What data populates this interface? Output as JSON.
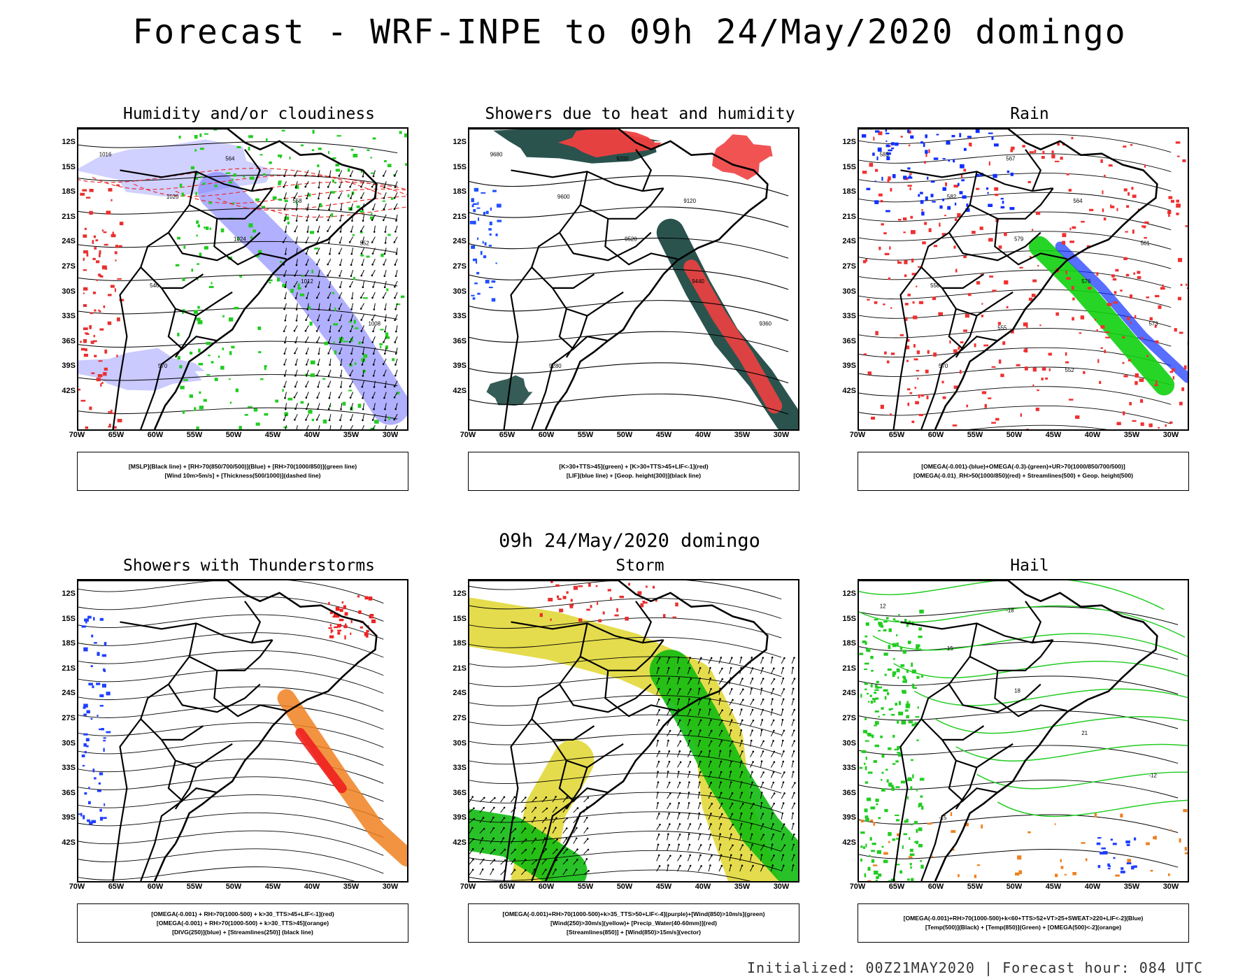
{
  "title": "Forecast - WRF-INPE to 09h 24/May/2020 domingo",
  "mid_title": "09h 24/May/2020 domingo",
  "footer": "Initialized: 00Z21MAY2020 | Forecast hour: 084 UTC",
  "lat_ticks": [
    "12S",
    "15S",
    "18S",
    "21S",
    "24S",
    "27S",
    "30S",
    "33S",
    "36S",
    "39S",
    "42S"
  ],
  "lon_ticks": [
    "70W",
    "65W",
    "60W",
    "55W",
    "50W",
    "45W",
    "40W",
    "35W",
    "30W"
  ],
  "panels": [
    {
      "title": "Humidity and/or cloudiness",
      "legend": [
        "[MSLP](Black line) + [RH>70(850/700/500)](Blue) + [RH>70(1000/850)](green line)",
        "[Wind 10m>5m/s] + [Thickness(500/1000)](dashed line)"
      ],
      "labels": [
        "1016",
        "1020",
        "1024",
        "1012",
        "1008",
        "570",
        "564",
        "558",
        "552",
        "546"
      ],
      "colors": {
        "primary": "#7b7bff",
        "secondary": "#22cc22",
        "accent": "#e83030"
      }
    },
    {
      "title": "Showers due to heat and humidity",
      "legend": [
        "[K>30+TTS>45](green) + [K>30+TTS>45+LIF<-1](red)",
        "[LIF](blue line) + [Geop. height(300)](black line)"
      ],
      "labels": [
        "9680",
        "9600",
        "9520",
        "9440",
        "9360",
        "9280",
        "9200",
        "9120"
      ],
      "colors": {
        "primary": "#1f4a45",
        "secondary": "#f04040",
        "accent": "#2050ff"
      }
    },
    {
      "title": "Rain",
      "legend": [
        "[OMEGA(-0.001)-(blue)+OMEGA(-0.3)-(green)+UR>70(1000/850/700/500)]",
        "[OMEGA(-0.01)_RH>50(1000/850)(red) + Streamlines(500) + Geop. height(500)"
      ],
      "labels": [
        "585",
        "582",
        "579",
        "576",
        "573",
        "570",
        "567",
        "564",
        "561",
        "558",
        "555",
        "552"
      ],
      "colors": {
        "primary": "#f03030",
        "secondary": "#10d010",
        "accent": "#1030ff"
      }
    },
    {
      "title": "Showers with Thunderstorms",
      "legend": [
        "[OMEGA(-0.001) + RH>70(1000-500) + k>30_TTS>45+LIF<-1](red)",
        "[OMEGA(-0.001) + RH>70(1000-500) + k>30_TTS>45](orange)",
        "[DIVG(250)](blue) + [Streamlines(250)] (black line)"
      ],
      "labels": [],
      "colors": {
        "primary": "#f08020",
        "secondary": "#f02020",
        "accent": "#2040ff"
      }
    },
    {
      "title": "Storm",
      "legend": [
        "[OMEGA(-0.001)+RH>70(1000-500)+k>35_TTS>50+LIF<-4](purple)+[Wind(850)>10m/s](green)",
        "[Wind(250)>30m/s](yellow)+ [Precip_Water(40-60mm)](red)",
        "[Streamlines(850)] + [Wind(850)>15m/s](vector)"
      ],
      "labels": [],
      "colors": {
        "primary": "#e2d83a",
        "secondary": "#11bb11",
        "accent": "#e83030"
      }
    },
    {
      "title": "Hail",
      "legend": [
        "[OMEGA(-0.001)+RH>70(1000-500)+k<60+TTS>52+VT>25+SWEAT>220+LIF<-2](Blue)",
        "[Temp(500)](Black) + [Temp(850)](Green) + [OMEGA(500)<-2](orange)"
      ],
      "labels": [
        "12",
        "15",
        "18",
        "21",
        "-12",
        "-15",
        "-18"
      ],
      "colors": {
        "primary": "#22cc22",
        "secondary": "#f08020",
        "accent": "#2040ff"
      }
    }
  ]
}
